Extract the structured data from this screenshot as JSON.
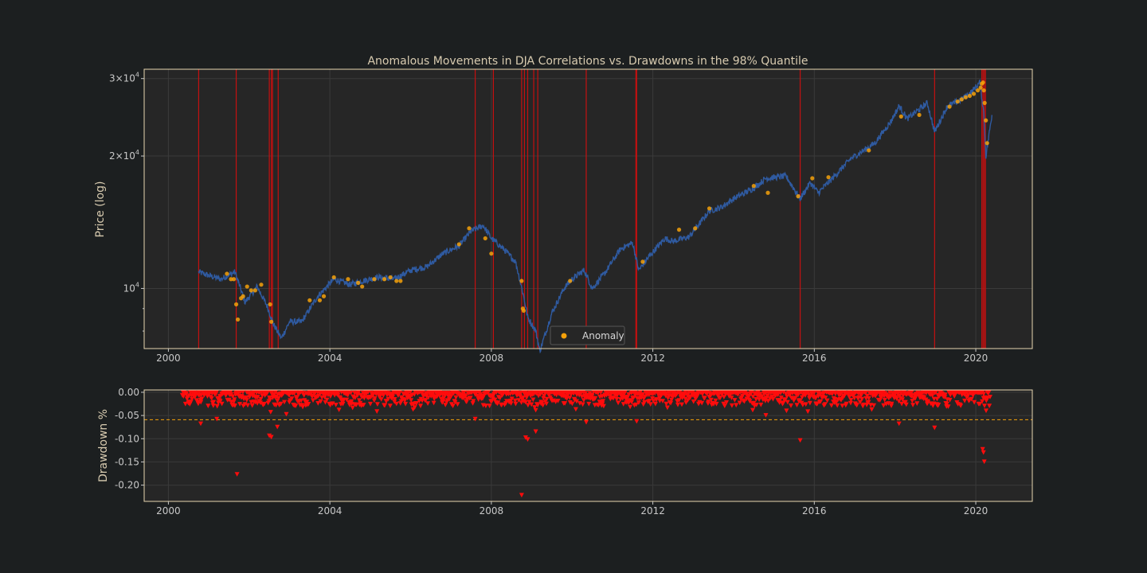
{
  "chart_data": [
    {
      "type": "line",
      "title": "Anomalous Movements in DJA Correlations vs. Drawdowns in the 98% Quantile",
      "xlabel": "",
      "ylabel": "Price (log)",
      "yscale": "log",
      "xlim": [
        1999.4,
        2021.4
      ],
      "ylim": [
        7300,
        31500
      ],
      "x_ticks": [
        "2000",
        "2004",
        "2008",
        "2012",
        "2016",
        "2020"
      ],
      "y_ticks": [
        {
          "value": 10000,
          "base": "10",
          "exp": "4",
          "coef": ""
        },
        {
          "value": 20000,
          "base": "10",
          "exp": "4",
          "coef": "2×"
        },
        {
          "value": 30000,
          "base": "10",
          "exp": "4",
          "coef": "3×"
        }
      ],
      "grid": true,
      "legend": {
        "location": "lower center",
        "entries": [
          "Anomaly"
        ]
      },
      "colors": {
        "price": "#2f5aa0",
        "anomaly": "#f5a10a",
        "vline": "#c41010",
        "axes_bg": "#262626",
        "frame": "#e7d7b0"
      },
      "series": [
        {
          "kind": "price",
          "x": [
            2000.75,
            2001.0,
            2001.3,
            2001.65,
            2001.9,
            2002.2,
            2002.45,
            2002.6,
            2002.8,
            2003.0,
            2003.3,
            2003.7,
            2004.1,
            2004.5,
            2004.8,
            2005.2,
            2005.6,
            2006.0,
            2006.4,
            2006.8,
            2007.2,
            2007.5,
            2007.8,
            2008.0,
            2008.3,
            2008.6,
            2008.8,
            2008.9,
            2009.1,
            2009.2,
            2009.5,
            2009.8,
            2010.0,
            2010.3,
            2010.5,
            2010.8,
            2011.2,
            2011.5,
            2011.65,
            2011.9,
            2012.3,
            2012.5,
            2012.9,
            2013.4,
            2013.7,
            2014.0,
            2014.5,
            2014.8,
            2015.3,
            2015.65,
            2015.9,
            2016.1,
            2016.5,
            2016.9,
            2017.5,
            2017.9,
            2018.1,
            2018.3,
            2018.8,
            2018.98,
            2019.3,
            2019.6,
            2019.9,
            2020.1,
            2020.2,
            2020.25,
            2020.4
          ],
          "values": [
            10900,
            10700,
            10500,
            10900,
            9300,
            10100,
            9100,
            8300,
            7700,
            8400,
            8400,
            9600,
            10500,
            10200,
            10400,
            10600,
            10500,
            11000,
            11200,
            12000,
            12500,
            13500,
            13900,
            13000,
            12300,
            11500,
            9600,
            8600,
            8000,
            7200,
            8800,
            10000,
            10500,
            11000,
            10000,
            10800,
            12300,
            12700,
            11000,
            11800,
            13000,
            12800,
            13100,
            15000,
            15300,
            16000,
            16900,
            17800,
            18000,
            16000,
            17400,
            16500,
            18000,
            19700,
            21400,
            24000,
            26000,
            24300,
            26400,
            22700,
            26000,
            26700,
            28000,
            29400,
            25000,
            20000,
            24800
          ]
        },
        {
          "kind": "anomaly",
          "name": "Anomaly",
          "x": [
            2001.45,
            2001.55,
            2001.62,
            2001.68,
            2001.72,
            2001.8,
            2001.85,
            2001.95,
            2002.05,
            2002.15,
            2002.3,
            2002.52,
            2002.55,
            2003.5,
            2003.75,
            2003.85,
            2004.1,
            2004.45,
            2004.7,
            2004.8,
            2005.1,
            2005.35,
            2005.5,
            2005.65,
            2005.75,
            2007.2,
            2007.45,
            2007.85,
            2008.0,
            2008.75,
            2008.78,
            2008.8,
            2009.95,
            2011.75,
            2012.65,
            2013.05,
            2013.4,
            2014.5,
            2014.85,
            2015.6,
            2015.95,
            2016.35,
            2017.35,
            2018.15,
            2018.6,
            2019.35,
            2019.55,
            2019.65,
            2019.75,
            2019.85,
            2019.95,
            2020.05,
            2020.12,
            2020.15,
            2020.18,
            2020.2,
            2020.22,
            2020.25,
            2020.28
          ],
          "values": [
            10800,
            10500,
            10500,
            9200,
            8500,
            9500,
            9600,
            10100,
            9900,
            9900,
            10200,
            9200,
            8400,
            9400,
            9400,
            9600,
            10600,
            10500,
            10300,
            10100,
            10500,
            10500,
            10600,
            10400,
            10400,
            12600,
            13700,
            13000,
            12000,
            10400,
            9000,
            8900,
            10400,
            11500,
            13600,
            13700,
            15200,
            17100,
            16500,
            16200,
            17800,
            17900,
            20600,
            24600,
            24800,
            25900,
            26600,
            26900,
            27200,
            27400,
            27700,
            28200,
            28600,
            29200,
            29400,
            28200,
            26400,
            24100,
            21400
          ]
        }
      ],
      "vlines_x": [
        2000.75,
        2001.68,
        2002.5,
        2002.55,
        2002.58,
        2002.72,
        2007.6,
        2008.05,
        2008.75,
        2008.82,
        2008.9,
        2009.05,
        2009.15,
        2010.35,
        2011.58,
        2011.6,
        2015.65,
        2018.98,
        2020.15,
        2020.18,
        2020.21,
        2020.24
      ]
    },
    {
      "type": "scatter",
      "title": "",
      "xlabel": "",
      "ylabel": "Drawdown %",
      "xlim": [
        1999.4,
        2021.4
      ],
      "ylim": [
        -0.235,
        0.005
      ],
      "x_ticks": [
        "2000",
        "2004",
        "2008",
        "2012",
        "2016",
        "2020"
      ],
      "y_ticks": [
        "0.00",
        "-0.05",
        "-0.10",
        "-0.15",
        "-0.20"
      ],
      "y_tick_values": [
        0.0,
        -0.05,
        -0.1,
        -0.15,
        -0.2
      ],
      "grid": true,
      "threshold": -0.059,
      "colors": {
        "marker": "#ff0c0c",
        "threshold": "#f5a10a",
        "axes_bg": "#262626",
        "frame": "#e7d7b0"
      },
      "x_range": [
        2000.35,
        2020.35
      ],
      "y_range": [
        -0.03,
        0.0
      ],
      "points": 1450,
      "extreme_points": [
        {
          "x": 2001.7,
          "y": -0.177
        },
        {
          "x": 2002.5,
          "y": -0.094
        },
        {
          "x": 2002.55,
          "y": -0.097
        },
        {
          "x": 2008.75,
          "y": -0.222
        },
        {
          "x": 2008.85,
          "y": -0.098
        },
        {
          "x": 2008.9,
          "y": -0.102
        },
        {
          "x": 2015.65,
          "y": -0.104
        },
        {
          "x": 2018.98,
          "y": -0.077
        },
        {
          "x": 2020.17,
          "y": -0.123
        },
        {
          "x": 2020.19,
          "y": -0.13
        },
        {
          "x": 2020.21,
          "y": -0.15
        },
        {
          "x": 2000.8,
          "y": -0.068
        },
        {
          "x": 2001.2,
          "y": -0.058
        },
        {
          "x": 2002.7,
          "y": -0.075
        },
        {
          "x": 2007.6,
          "y": -0.058
        },
        {
          "x": 2009.1,
          "y": -0.085
        },
        {
          "x": 2010.35,
          "y": -0.065
        },
        {
          "x": 2011.6,
          "y": -0.063
        },
        {
          "x": 2014.8,
          "y": -0.05
        },
        {
          "x": 2018.1,
          "y": -0.068
        }
      ]
    }
  ]
}
